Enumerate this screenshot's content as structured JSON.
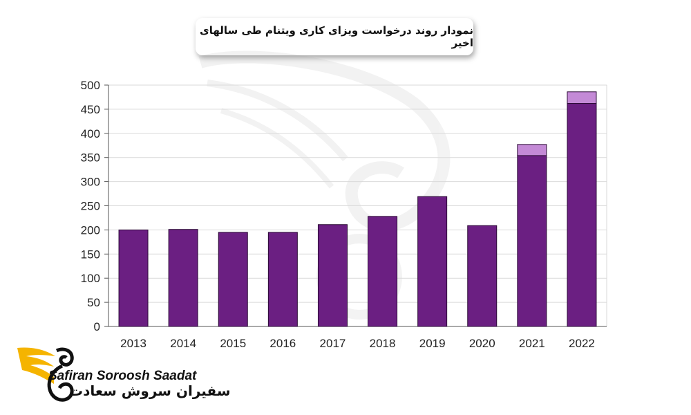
{
  "chart_data": {
    "type": "bar",
    "title": "نمودار روند درخواست ویزای کاری ویتنام طی سالهای اخیر",
    "categories": [
      "2013",
      "2014",
      "2015",
      "2016",
      "2017",
      "2018",
      "2019",
      "2020",
      "2021",
      "2022"
    ],
    "series": [
      {
        "values": [
          200,
          201,
          195,
          195,
          211,
          228,
          269,
          209,
          354,
          462
        ]
      },
      {
        "values": [
          0,
          0,
          0,
          0,
          0,
          0,
          0,
          0,
          23,
          24
        ]
      }
    ],
    "yticks": [
      0,
      50,
      100,
      150,
      200,
      250,
      300,
      350,
      400,
      450,
      500
    ],
    "ylim": [
      0,
      500
    ],
    "stacked": true,
    "grid": true,
    "xlabel": "",
    "ylabel": "",
    "colors": {
      "base": "#6b1f82",
      "top": "#c48ad6",
      "grid": "#d9d9d9"
    }
  },
  "watermark": {
    "icon": "swan-logo-icon"
  },
  "brand": {
    "name_en": "Safiran Soroosh Saadat",
    "name_fa": "سفیران سروش سعادت",
    "colors": {
      "gold": "#f5b400",
      "dark": "#111111"
    }
  }
}
